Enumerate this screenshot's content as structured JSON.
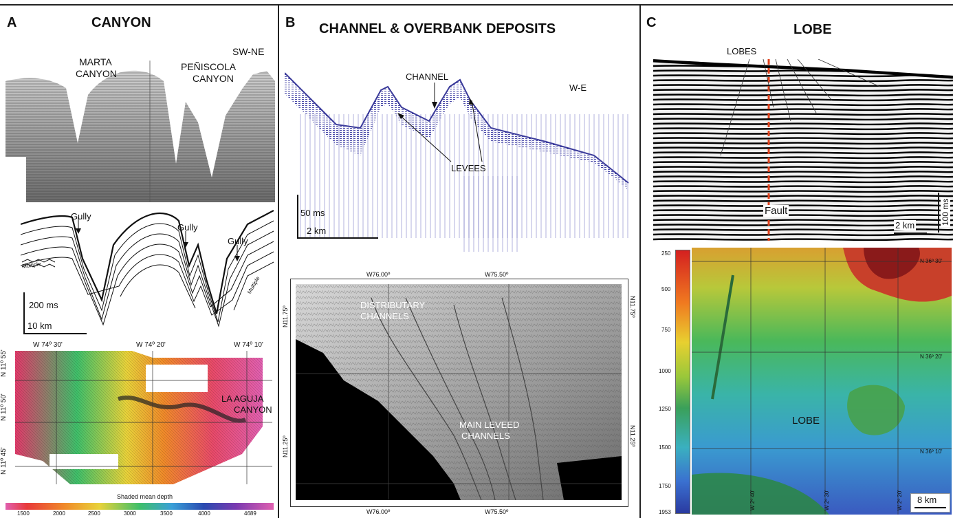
{
  "panelA": {
    "label": "A",
    "title": "CANYON",
    "seismic": {
      "direction": "SW-NE",
      "canyon1_line1": "MARTA",
      "canyon1_line2": "CANYON",
      "canyon2_line1": "PEÑISCOLA",
      "canyon2_line2": "CANYON"
    },
    "interpretation": {
      "gully": "Gully",
      "multiple": "Multiple",
      "vertical_scale": "200 ms",
      "horizontal_scale": "10 km"
    },
    "map": {
      "lon_labels": [
        "W 74º 30'",
        "W 74º 20'",
        "W 74º 10'"
      ],
      "lat_labels": [
        "N 11º 55'",
        "N 11º 50'",
        "N 11º 45'"
      ],
      "feature_line1": "LA AGUJA",
      "feature_line2": "CANYON",
      "colorbar_title": "Shaded mean depth",
      "colorbar_ticks": [
        "1500",
        "2000",
        "2500",
        "3000",
        "3500",
        "4000",
        "4689"
      ]
    }
  },
  "panelB": {
    "label": "B",
    "title": "CHANNEL & OVERBANK DEPOSITS",
    "profile": {
      "channel": "CHANNEL",
      "direction": "W-E",
      "levees": "LEVEES",
      "vertical_scale": "50 ms",
      "horizontal_scale": "2 km"
    },
    "map": {
      "lon_labels": [
        "W76.00º",
        "W75.50º"
      ],
      "lat_labels": [
        "N11.75º",
        "N11.25º"
      ],
      "distributary_line1": "DISTRIBUTARY",
      "distributary_line2": "CHANNELS",
      "main_line1": "MAIN LEVEED",
      "main_line2": "CHANNELS"
    }
  },
  "panelC": {
    "label": "C",
    "title": "LOBE",
    "seismic": {
      "lobes": "LOBES",
      "fault": "Fault",
      "horizontal_scale": "2 km",
      "vertical_scale": "100 ms"
    },
    "map": {
      "depth_ticks": [
        "250",
        "500",
        "750",
        "1000",
        "1250",
        "1500",
        "1750",
        "1953"
      ],
      "lat_labels": [
        "N 36º 30'",
        "N 36º 20'",
        "N 36º 10'"
      ],
      "lon_labels": [
        "W 2º 40'",
        "W 2º 30'",
        "W 2º 20'"
      ],
      "lobe": "LOBE",
      "scale": "8 km"
    }
  }
}
